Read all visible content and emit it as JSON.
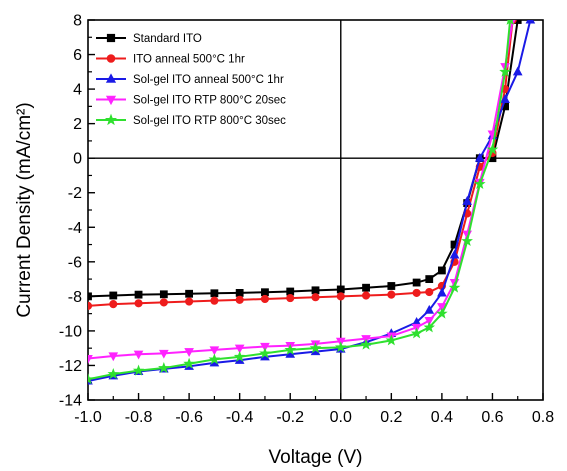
{
  "chart_data": {
    "type": "line",
    "title": "",
    "xlabel": "Voltage (V)",
    "ylabel": "Current Density (mA/cm²)",
    "xlim": [
      -1.0,
      0.8
    ],
    "ylim": [
      -14,
      8
    ],
    "x_ticks": [
      "-1.0",
      "-0.8",
      "-0.6",
      "-0.4",
      "-0.2",
      "0.0",
      "0.2",
      "0.4",
      "0.6",
      "0.8"
    ],
    "y_ticks": [
      "-14",
      "-12",
      "-10",
      "-8",
      "-6",
      "-4",
      "-2",
      "0",
      "2",
      "4",
      "6",
      "8"
    ],
    "legend_position": "top-left",
    "series": [
      {
        "name": "Standard ITO",
        "color": "#000000",
        "marker": "square",
        "x": [
          -1.0,
          -0.9,
          -0.8,
          -0.7,
          -0.6,
          -0.5,
          -0.4,
          -0.3,
          -0.2,
          -0.1,
          0.0,
          0.1,
          0.2,
          0.3,
          0.35,
          0.4,
          0.45,
          0.5,
          0.55,
          0.6,
          0.65,
          0.7
        ],
        "y": [
          -8.0,
          -7.95,
          -7.9,
          -7.88,
          -7.85,
          -7.82,
          -7.8,
          -7.76,
          -7.72,
          -7.65,
          -7.6,
          -7.5,
          -7.4,
          -7.2,
          -7.0,
          -6.5,
          -5.0,
          -2.6,
          0.0,
          0.0,
          3.0,
          8.0
        ]
      },
      {
        "name": "ITO anneal 500°C 1hr",
        "color": "#ee1c1c",
        "marker": "circle",
        "x": [
          -1.0,
          -0.9,
          -0.8,
          -0.7,
          -0.6,
          -0.5,
          -0.4,
          -0.3,
          -0.2,
          -0.1,
          0.0,
          0.1,
          0.2,
          0.3,
          0.35,
          0.4,
          0.45,
          0.5,
          0.55,
          0.6,
          0.65,
          0.68
        ],
        "y": [
          -8.55,
          -8.45,
          -8.4,
          -8.35,
          -8.3,
          -8.25,
          -8.2,
          -8.15,
          -8.1,
          -8.05,
          -8.0,
          -7.95,
          -7.9,
          -7.8,
          -7.75,
          -7.4,
          -6.0,
          -3.2,
          -0.5,
          0.3,
          4.0,
          8.0
        ]
      },
      {
        "name": "Sol-gel ITO anneal 500°C 1hr",
        "color": "#1a1ae6",
        "marker": "triangle-up",
        "x": [
          -1.0,
          -0.9,
          -0.8,
          -0.7,
          -0.6,
          -0.5,
          -0.4,
          -0.3,
          -0.2,
          -0.1,
          0.0,
          0.1,
          0.2,
          0.3,
          0.35,
          0.4,
          0.45,
          0.5,
          0.55,
          0.6,
          0.65,
          0.7,
          0.75
        ],
        "y": [
          -12.9,
          -12.6,
          -12.35,
          -12.2,
          -12.05,
          -11.85,
          -11.7,
          -11.5,
          -11.35,
          -11.2,
          -11.05,
          -10.65,
          -10.15,
          -9.5,
          -8.8,
          -7.8,
          -5.6,
          -2.5,
          0.0,
          1.3,
          3.4,
          5.0,
          8.0
        ]
      },
      {
        "name": "Sol-gel ITO RTP 800°C 20sec",
        "color": "#ff22ff",
        "marker": "triangle-down",
        "x": [
          -1.0,
          -0.9,
          -0.8,
          -0.7,
          -0.6,
          -0.5,
          -0.4,
          -0.3,
          -0.2,
          -0.1,
          0.0,
          0.1,
          0.2,
          0.3,
          0.35,
          0.4,
          0.45,
          0.5,
          0.55,
          0.6,
          0.65,
          0.68
        ],
        "y": [
          -11.6,
          -11.45,
          -11.35,
          -11.3,
          -11.2,
          -11.1,
          -11.0,
          -10.9,
          -10.85,
          -10.75,
          -10.6,
          -10.45,
          -10.3,
          -9.8,
          -9.4,
          -8.6,
          -7.2,
          -4.4,
          -1.4,
          1.4,
          5.3,
          8.0
        ]
      },
      {
        "name": "Sol-gel ITO RTP 800°C 30sec",
        "color": "#2fe02f",
        "marker": "star",
        "x": [
          -1.0,
          -0.9,
          -0.8,
          -0.7,
          -0.6,
          -0.5,
          -0.4,
          -0.3,
          -0.2,
          -0.1,
          0.0,
          0.1,
          0.2,
          0.3,
          0.35,
          0.4,
          0.45,
          0.5,
          0.55,
          0.6,
          0.65,
          0.67
        ],
        "y": [
          -12.8,
          -12.5,
          -12.3,
          -12.15,
          -11.9,
          -11.65,
          -11.5,
          -11.3,
          -11.1,
          -11.0,
          -10.95,
          -10.8,
          -10.55,
          -10.15,
          -9.8,
          -9.0,
          -7.5,
          -4.8,
          -1.5,
          0.5,
          5.0,
          8.0
        ]
      }
    ]
  }
}
